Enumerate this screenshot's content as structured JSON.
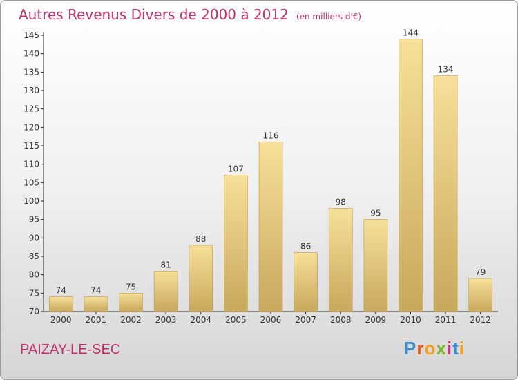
{
  "title": "Autres Revenus Divers de 2000 à 2012",
  "subtitle": "(en milliers d'€)",
  "commune": "PAIZAY-LE-SEC",
  "logo": {
    "letters": [
      "P",
      "r",
      "o",
      "x",
      "i",
      "t",
      "i"
    ],
    "colors": [
      "#3a8fd0",
      "#e5571f",
      "#f4a21a",
      "#7cb82f",
      "#d63384",
      "#3a8fd0",
      "#f4a21a"
    ]
  },
  "colors": {
    "title": "#c2306a",
    "bar_light": "#f7e09a",
    "bar_dark": "#c8a85c",
    "bar_edge": "#b89a52",
    "axis": "#333333"
  },
  "chart_data": {
    "type": "bar",
    "categories": [
      "2000",
      "2001",
      "2002",
      "2003",
      "2004",
      "2005",
      "2006",
      "2007",
      "2008",
      "2009",
      "2010",
      "2011",
      "2012"
    ],
    "values": [
      74,
      74,
      75,
      81,
      88,
      107,
      116,
      86,
      98,
      95,
      144,
      134,
      79
    ],
    "ylim": [
      70,
      145
    ],
    "yticks": [
      70,
      75,
      80,
      85,
      90,
      95,
      100,
      105,
      110,
      115,
      120,
      125,
      130,
      135,
      140,
      145
    ],
    "grid": false,
    "data_labels": true
  }
}
